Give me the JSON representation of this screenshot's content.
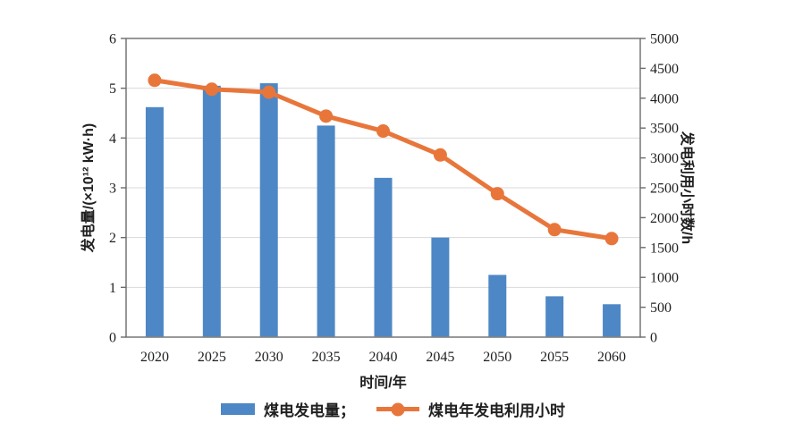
{
  "figure": {
    "background": "#ffffff"
  },
  "colors": {
    "bar": "#4E87C5",
    "line": "#E8763B",
    "grid": "#D9D9D9",
    "axis": "#6b6b6b",
    "text": "#1f1f1f"
  },
  "legend": {
    "bar_label": "煤电发电量；",
    "line_label": "煤电年发电利用小时"
  },
  "chart_data": {
    "type": "bar",
    "subtype": "bar+line dual-axis",
    "categories": [
      "2020",
      "2025",
      "2030",
      "2035",
      "2040",
      "2045",
      "2050",
      "2055",
      "2060"
    ],
    "series": [
      {
        "name": "煤电发电量",
        "type": "bar",
        "axis": "left",
        "values": [
          4.62,
          5.05,
          5.1,
          4.25,
          3.2,
          2.0,
          1.25,
          0.82,
          0.66
        ],
        "color": "#4E87C5"
      },
      {
        "name": "煤电年发电利用小时",
        "type": "line",
        "axis": "right",
        "values": [
          4300,
          4150,
          4100,
          3700,
          3450,
          3050,
          2400,
          1800,
          1650
        ],
        "color": "#E8763B"
      }
    ],
    "left_axis": {
      "title": "发电量/(×10¹² kW·h)",
      "min": 0,
      "max": 6,
      "step": 1
    },
    "right_axis": {
      "title": "发电利用小时数/h",
      "min": 0,
      "max": 5000,
      "step": 500
    },
    "x_axis": {
      "title": "时间/年"
    },
    "grid": true,
    "legend_position": "bottom"
  }
}
